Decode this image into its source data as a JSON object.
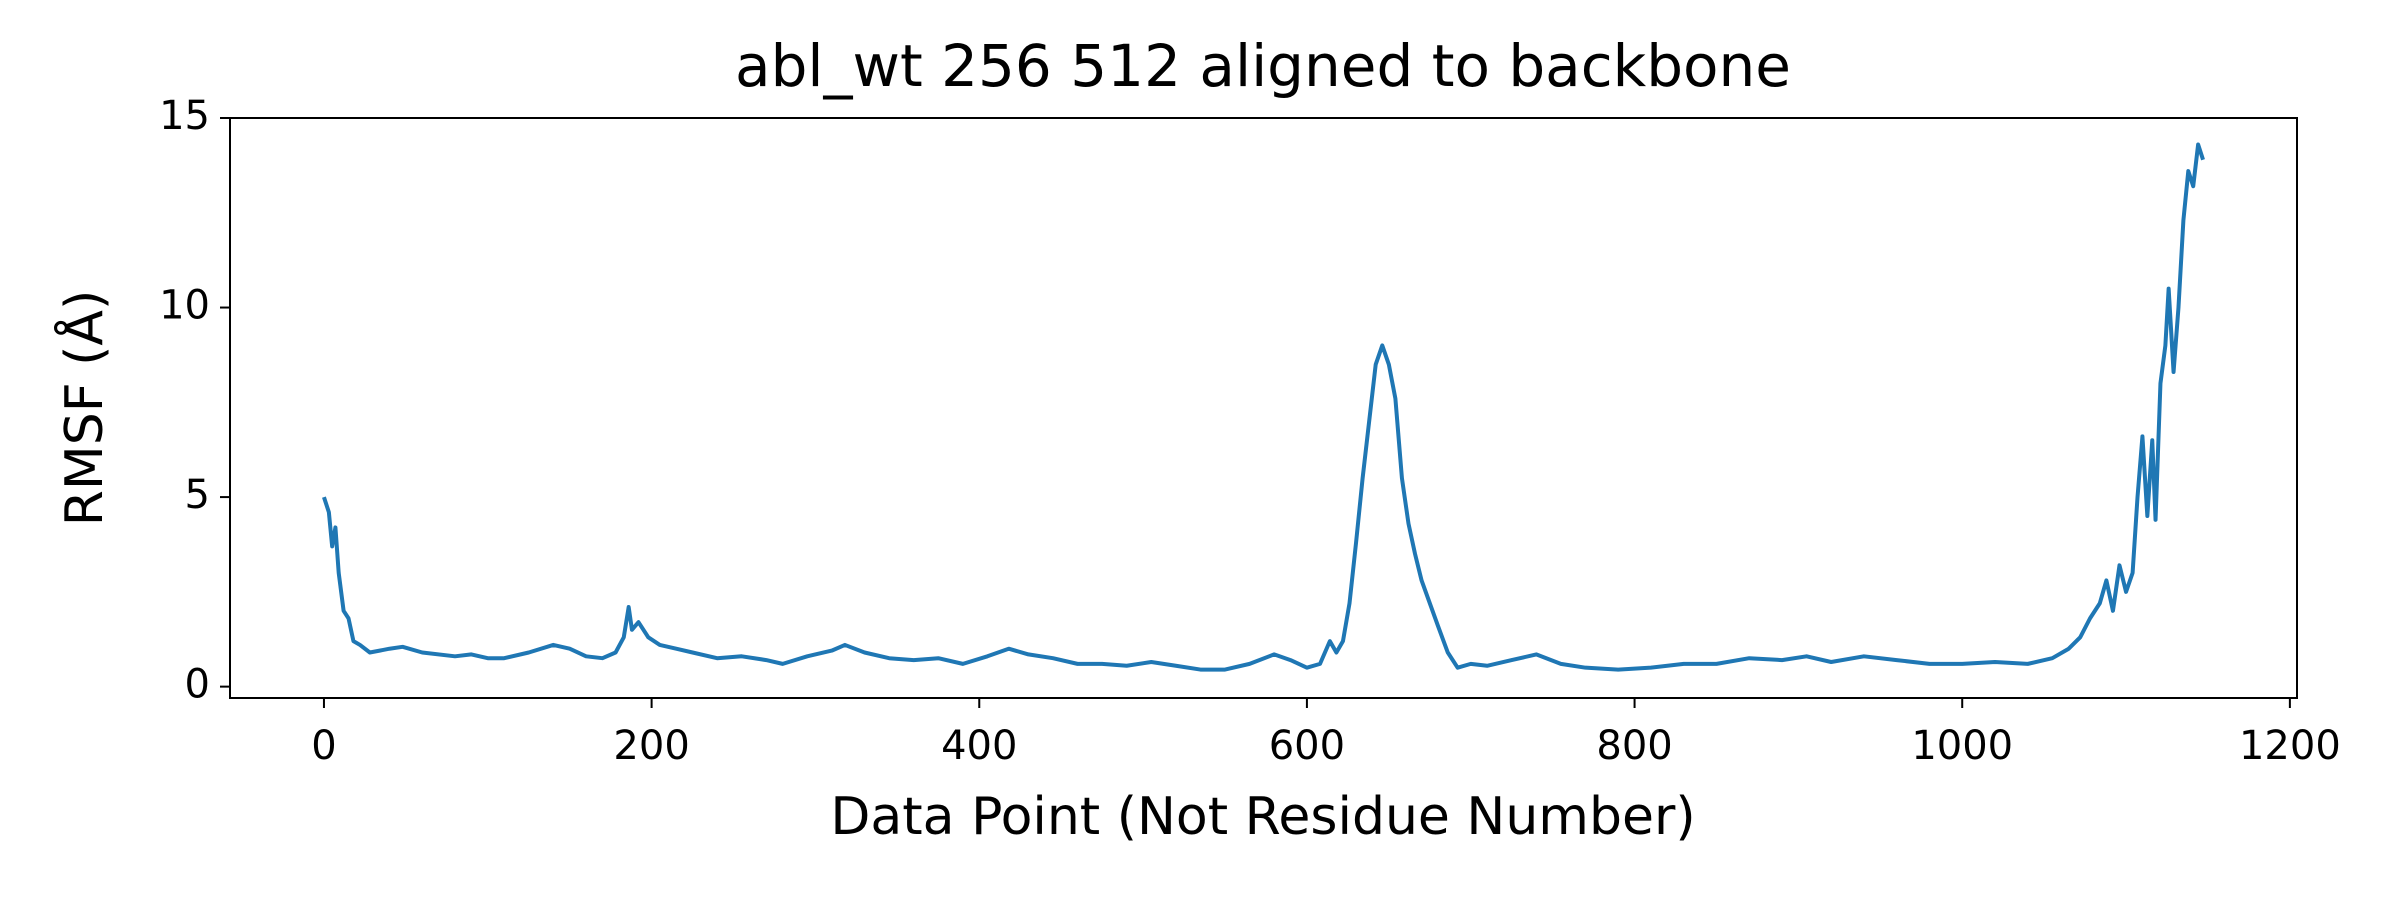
{
  "chart_data": {
    "type": "line",
    "title": "abl_wt 256 512 aligned to backbone",
    "xlabel": "Data Point (Not Residue Number)",
    "ylabel": "RMSF (Å)",
    "x": [
      0,
      3,
      5,
      7,
      9,
      12,
      15,
      18,
      22,
      28,
      40,
      48,
      60,
      80,
      90,
      100,
      110,
      125,
      140,
      150,
      160,
      170,
      178,
      183,
      186,
      188,
      192,
      198,
      205,
      215,
      225,
      240,
      255,
      270,
      280,
      295,
      310,
      318,
      330,
      345,
      360,
      375,
      390,
      405,
      418,
      430,
      445,
      460,
      475,
      490,
      505,
      520,
      535,
      550,
      565,
      580,
      590,
      600,
      608,
      614,
      618,
      622,
      626,
      630,
      634,
      638,
      642,
      646,
      650,
      654,
      658,
      662,
      666,
      670,
      675,
      680,
      686,
      692,
      700,
      710,
      725,
      740,
      755,
      770,
      790,
      810,
      830,
      850,
      870,
      890,
      905,
      920,
      940,
      960,
      980,
      1000,
      1020,
      1040,
      1055,
      1065,
      1072,
      1078,
      1084,
      1088,
      1092,
      1096,
      1100,
      1104,
      1107,
      1110,
      1113,
      1116,
      1118,
      1121,
      1124,
      1126,
      1129,
      1132,
      1135,
      1138,
      1141,
      1144,
      1147
    ],
    "series": [
      {
        "name": "RMSF",
        "color": "#1f77b4",
        "values": [
          5.0,
          4.6,
          3.7,
          4.2,
          3.0,
          2.0,
          1.8,
          1.2,
          1.1,
          0.9,
          1.0,
          1.05,
          0.9,
          0.8,
          0.85,
          0.75,
          0.75,
          0.9,
          1.1,
          1.0,
          0.8,
          0.75,
          0.9,
          1.3,
          2.1,
          1.5,
          1.7,
          1.3,
          1.1,
          1.0,
          0.9,
          0.75,
          0.8,
          0.7,
          0.6,
          0.8,
          0.95,
          1.1,
          0.9,
          0.75,
          0.7,
          0.75,
          0.6,
          0.8,
          1.0,
          0.85,
          0.75,
          0.6,
          0.6,
          0.55,
          0.65,
          0.55,
          0.45,
          0.45,
          0.6,
          0.85,
          0.7,
          0.5,
          0.6,
          1.2,
          0.9,
          1.2,
          2.2,
          3.8,
          5.5,
          7.0,
          8.5,
          9.0,
          8.5,
          7.6,
          5.5,
          4.3,
          3.5,
          2.8,
          2.2,
          1.6,
          0.9,
          0.5,
          0.6,
          0.55,
          0.7,
          0.85,
          0.6,
          0.5,
          0.45,
          0.5,
          0.6,
          0.6,
          0.75,
          0.7,
          0.8,
          0.65,
          0.8,
          0.7,
          0.6,
          0.6,
          0.65,
          0.6,
          0.75,
          1.0,
          1.3,
          1.8,
          2.2,
          2.8,
          2.0,
          3.2,
          2.5,
          3.0,
          5.0,
          6.6,
          4.5,
          6.5,
          4.4,
          8.0,
          9.0,
          10.5,
          8.3,
          10.0,
          12.3,
          13.6,
          13.2,
          14.3,
          13.9
        ]
      }
    ],
    "xlim": [
      -57.35,
      1204.35
    ],
    "ylim": [
      -0.3,
      15.0
    ],
    "xticks": [
      0,
      200,
      400,
      600,
      800,
      1000,
      1200
    ],
    "yticks": [
      0,
      5,
      10,
      15
    ],
    "grid": false
  }
}
